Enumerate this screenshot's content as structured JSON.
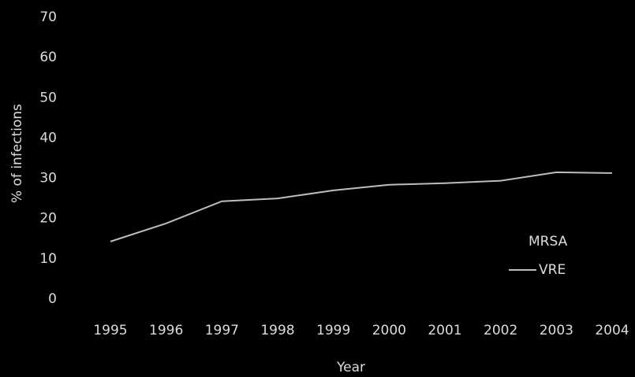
{
  "chart_data": {
    "type": "line",
    "x_label": "Year",
    "y_label": "% of infections",
    "categories": [
      "1995",
      "1996",
      "1997",
      "1998",
      "1999",
      "2000",
      "2001",
      "2002",
      "2003",
      "2004"
    ],
    "series": [
      {
        "name": "MRSA",
        "color": "#000000",
        "values": [
          null,
          null,
          null,
          null,
          null,
          null,
          null,
          null,
          null,
          null
        ]
      },
      {
        "name": "VRE",
        "color": "#bdbdbd",
        "values": [
          14.3,
          18.8,
          24.3,
          25,
          27,
          28.4,
          28.8,
          29.4,
          31.5,
          31.3
        ]
      }
    ],
    "ylim": [
      0,
      70
    ],
    "yticks": [
      0,
      10,
      20,
      30,
      40,
      50,
      60,
      70
    ],
    "grid": false,
    "legend": "lower right"
  }
}
